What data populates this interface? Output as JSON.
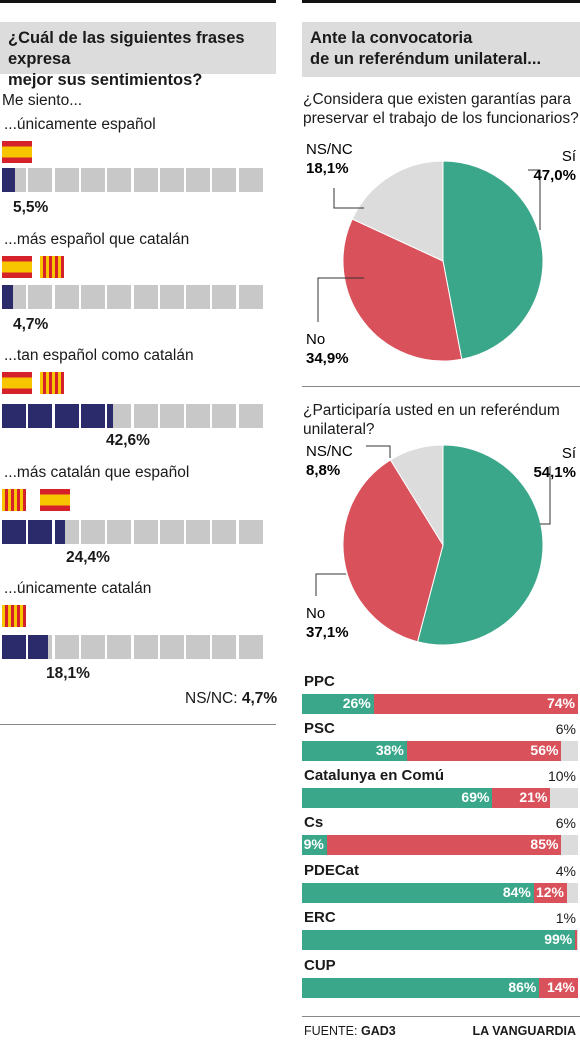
{
  "colors": {
    "navy": "#2b2b6b",
    "gray": "#c8c8c8",
    "green": "#3aa78a",
    "red": "#d9515a",
    "lightgray": "#dcdcdc",
    "flag_red": "#d5222a",
    "flag_yellow": "#f7c600"
  },
  "left": {
    "title_line1": "¿Cuál de las siguientes frases expresa",
    "title_line2": "mejor sus sentimientos?",
    "intro": "Me siento...",
    "items": [
      {
        "label": "...únicamente español",
        "value": 5.5,
        "value_label": "5,5%",
        "flags": [
          "es"
        ]
      },
      {
        "label": "...más español que catalán",
        "value": 4.7,
        "value_label": "4,7%",
        "flags": [
          "es",
          "cat"
        ]
      },
      {
        "label": "...tan español como catalán",
        "value": 42.6,
        "value_label": "42,6%",
        "flags": [
          "es",
          "cat"
        ]
      },
      {
        "label": "...más catalán que español",
        "value": 24.4,
        "value_label": "24,4%",
        "flags": [
          "cat",
          "es"
        ]
      },
      {
        "label": "...únicamente catalán",
        "value": 18.1,
        "value_label": "18,1%",
        "flags": [
          "cat"
        ]
      }
    ],
    "nsnc_label": "NS/NC:",
    "nsnc_value": "4,7%"
  },
  "right": {
    "title_line1": "Ante la convocatoria",
    "title_line2": "de un referéndum unilateral...",
    "q1_line1": "¿Considera que existen garantías para",
    "q1_line2": "preservar el trabajo de los funcionarios?",
    "q2_line1": "¿Participaría usted en un referéndum",
    "q2_line2": "unilateral?",
    "parties_note": "",
    "footer_source_label": "FUENTE:",
    "footer_source": "GAD3",
    "footer_brand": "LA VANGUARDIA"
  },
  "chart_data": [
    {
      "type": "bar",
      "title": "¿Cuál de las siguientes frases expresa mejor sus sentimientos?",
      "categories": [
        "...únicamente español",
        "...más español que catalán",
        "...tan español como catalán",
        "...más catalán que español",
        "...únicamente catalán"
      ],
      "values": [
        5.5,
        4.7,
        42.6,
        24.4,
        18.1
      ],
      "unit": "%",
      "extra": {
        "NS/NC": 4.7
      }
    },
    {
      "type": "pie",
      "title": "¿Considera que existen garantías para preservar el trabajo de los funcionarios?",
      "labels": [
        "Sí",
        "No",
        "NS/NC"
      ],
      "values": [
        47.0,
        34.9,
        18.1
      ],
      "value_labels": [
        "47,0%",
        "34,9%",
        "18,1%"
      ],
      "colors": [
        "#3aa78a",
        "#d9515a",
        "#dcdcdc"
      ]
    },
    {
      "type": "pie",
      "title": "¿Participaría usted en un referéndum unilateral?",
      "labels": [
        "Sí",
        "No",
        "NS/NC"
      ],
      "values": [
        54.1,
        37.1,
        8.8
      ],
      "value_labels": [
        "54,1%",
        "37,1%",
        "8,8%"
      ],
      "colors": [
        "#3aa78a",
        "#d9515a",
        "#dcdcdc"
      ]
    },
    {
      "type": "bar",
      "stacked": true,
      "categories": [
        "PPC",
        "PSC",
        "Catalunya en Comú",
        "Cs",
        "PDECat",
        "ERC",
        "CUP"
      ],
      "series": [
        {
          "name": "Sí",
          "values": [
            26,
            38,
            69,
            9,
            84,
            99,
            86
          ]
        },
        {
          "name": "No",
          "values": [
            74,
            56,
            21,
            85,
            12,
            0,
            14
          ]
        },
        {
          "name": "NS/NC",
          "values": [
            0,
            6,
            10,
            6,
            4,
            1,
            0
          ]
        }
      ],
      "labels": [
        {
          "yes": "26%",
          "no": "74%",
          "ns": ""
        },
        {
          "yes": "38%",
          "no": "56%",
          "ns": "6%"
        },
        {
          "yes": "69%",
          "no": "21%",
          "ns": "10%"
        },
        {
          "yes": "9%",
          "no": "85%",
          "ns": "6%"
        },
        {
          "yes": "84%",
          "no": "12%",
          "ns": "4%"
        },
        {
          "yes": "99%",
          "no": "",
          "ns": "1%"
        },
        {
          "yes": "86%",
          "no": "14%",
          "ns": ""
        }
      ]
    }
  ]
}
